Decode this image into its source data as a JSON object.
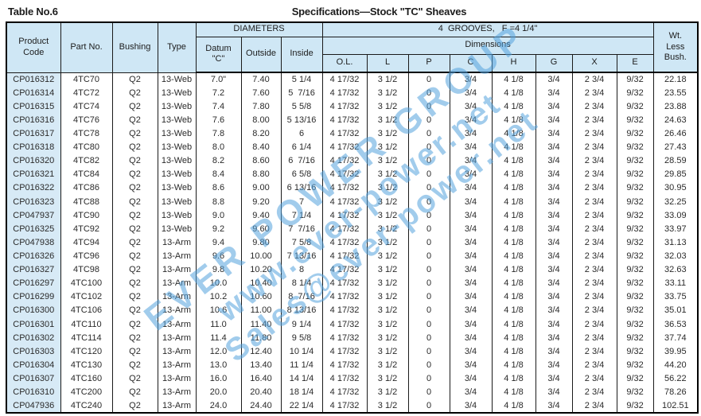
{
  "page": {
    "table_label": "Table No.6",
    "title": "Specifications—Stock \"TC\" Sheaves"
  },
  "header": {
    "product_code": "Product\nCode",
    "part_no": "Part No.",
    "bushing": "Bushing",
    "type": "Type",
    "diameters": "DIAMETERS",
    "grooves": "4  GROOVES,   F =4 1/4\"",
    "dimensions": "Dimensions",
    "datum": "Datum\n\"C\"",
    "outside": "Outside",
    "inside": "Inside",
    "dim_cols": [
      "O.L.",
      "L",
      "P",
      "C",
      "H",
      "G",
      "X",
      "E"
    ],
    "wt": "Wt.\nLess\nBush."
  },
  "column_keys": [
    "product-code",
    "part-no",
    "bushing",
    "type",
    "datum-c",
    "outside",
    "inside",
    "o-l",
    "l",
    "p",
    "c",
    "h",
    "g",
    "x",
    "e",
    "wt-less-bush"
  ],
  "rows": [
    [
      "CP016312",
      "4TC70",
      "Q2",
      "13-Web",
      "7.0\"",
      "7.40",
      "5 1/4",
      "4 17/32",
      "3 1/2",
      "0",
      "3/4",
      "4 1/8",
      "3/4",
      "2 3/4",
      "9/32",
      "22.18"
    ],
    [
      "CP016314",
      "4TC72",
      "Q2",
      "13-Web",
      "7.2",
      "7.60",
      "5  7/16",
      "4 17/32",
      "3 1/2",
      "0",
      "3/4",
      "4 1/8",
      "3/4",
      "2 3/4",
      "9/32",
      "23.55"
    ],
    [
      "CP016315",
      "4TC74",
      "Q2",
      "13-Web",
      "7.4",
      "7.80",
      "5 5/8",
      "4 17/32",
      "3 1/2",
      "0",
      "3/4",
      "4 1/8",
      "3/4",
      "2 3/4",
      "9/32",
      "23.88"
    ],
    [
      "CP016316",
      "4TC76",
      "Q2",
      "13-Web",
      "7.6",
      "8.00",
      "5 13/16",
      "4 17/32",
      "3 1/2",
      "0",
      "3/4",
      "4 1/8",
      "3/4",
      "2 3/4",
      "9/32",
      "24.63"
    ],
    [
      "CP016317",
      "4TC78",
      "Q2",
      "13-Web",
      "7.8",
      "8.20",
      "6",
      "4 17/32",
      "3 1/2",
      "0",
      "3/4",
      "4 1/8",
      "3/4",
      "2 3/4",
      "9/32",
      "26.46"
    ],
    [
      "CP016318",
      "4TC80",
      "Q2",
      "13-Web",
      "8.0",
      "8.40",
      "6 1/4",
      "4 17/32",
      "3 1/2",
      "0",
      "3/4",
      "4 1/8",
      "3/4",
      "2 3/4",
      "9/32",
      "27.43"
    ],
    [
      "CP016320",
      "4TC82",
      "Q2",
      "13-Web",
      "8.2",
      "8.60",
      "6  7/16",
      "4 17/32",
      "3 1/2",
      "0",
      "3/4",
      "4 1/8",
      "3/4",
      "2 3/4",
      "9/32",
      "28.59"
    ],
    [
      "CP016321",
      "4TC84",
      "Q2",
      "13-Web",
      "8.4",
      "8.80",
      "6 5/8",
      "4 17/32",
      "3 1/2",
      "0",
      "3/4",
      "4 1/8",
      "3/4",
      "2 3/4",
      "9/32",
      "29.85"
    ],
    [
      "CP016322",
      "4TC86",
      "Q2",
      "13-Web",
      "8.6",
      "9.00",
      "6 13/16",
      "4 17/32",
      "3 1/2",
      "0",
      "3/4",
      "4 1/8",
      "3/4",
      "2 3/4",
      "9/32",
      "30.95"
    ],
    [
      "CP016323",
      "4TC88",
      "Q2",
      "13-Web",
      "8.8",
      "9.20",
      "7",
      "4 17/32",
      "3 1/2",
      "0",
      "3/4",
      "4 1/8",
      "3/4",
      "2 3/4",
      "9/32",
      "32.25"
    ],
    [
      "CP047937",
      "4TC90",
      "Q2",
      "13-Web",
      "9.0",
      "9.40",
      "7 1/4",
      "4 17/32",
      "3 1/2",
      "0",
      "3/4",
      "4 1/8",
      "3/4",
      "2 3/4",
      "9/32",
      "33.09"
    ],
    [
      "CP016325",
      "4TC92",
      "Q2",
      "13-Web",
      "9.2",
      "9.60",
      "7  7/16",
      "4 17/32",
      "3 1/2",
      "0",
      "3/4",
      "4 1/8",
      "3/4",
      "2 3/4",
      "9/32",
      "33.97"
    ],
    [
      "CP047938",
      "4TC94",
      "Q2",
      "13-Arm",
      "9.4",
      "9.80",
      "7 5/8",
      "4 17/32",
      "3 1/2",
      "0",
      "3/4",
      "4 1/8",
      "3/4",
      "2 3/4",
      "9/32",
      "31.13"
    ],
    [
      "CP016326",
      "4TC96",
      "Q2",
      "13-Arm",
      "9.6",
      "10.00",
      "7 13/16",
      "4 17/32",
      "3 1/2",
      "0",
      "3/4",
      "4 1/8",
      "3/4",
      "2 3/4",
      "9/32",
      "32.03"
    ],
    [
      "CP016327",
      "4TC98",
      "Q2",
      "13-Arm",
      "9.8",
      "10.20",
      "8",
      "4 17/32",
      "3 1/2",
      "0",
      "3/4",
      "4 1/8",
      "3/4",
      "2 3/4",
      "9/32",
      "32.63"
    ],
    [
      "CP016297",
      "4TC100",
      "Q2",
      "13-Arm",
      "10.0",
      "10.40",
      "8 1/4",
      "4 17/32",
      "3 1/2",
      "0",
      "3/4",
      "4 1/8",
      "3/4",
      "2 3/4",
      "9/32",
      "33.11"
    ],
    [
      "CP016299",
      "4TC102",
      "Q2",
      "13-Arm",
      "10.2",
      "10.60",
      "8  7/16",
      "4 17/32",
      "3 1/2",
      "0",
      "3/4",
      "4 1/8",
      "3/4",
      "2 3/4",
      "9/32",
      "33.75"
    ],
    [
      "CP016300",
      "4TC106",
      "Q2",
      "13-Arm",
      "10.6",
      "11.00",
      "8 13/16",
      "4 17/32",
      "3 1/2",
      "0",
      "3/4",
      "4 1/8",
      "3/4",
      "2 3/4",
      "9/32",
      "35.01"
    ],
    [
      "CP016301",
      "4TC110",
      "Q2",
      "13-Arm",
      "11.0",
      "11.40",
      "9 1/4",
      "4 17/32",
      "3 1/2",
      "0",
      "3/4",
      "4 1/8",
      "3/4",
      "2 3/4",
      "9/32",
      "36.53"
    ],
    [
      "CP016302",
      "4TC114",
      "Q2",
      "13-Arm",
      "11.4",
      "11.80",
      "9 5/8",
      "4 17/32",
      "3 1/2",
      "0",
      "3/4",
      "4 1/8",
      "3/4",
      "2 3/4",
      "9/32",
      "37.74"
    ],
    [
      "CP016303",
      "4TC120",
      "Q2",
      "13-Arm",
      "12.0",
      "12.40",
      "10 1/4",
      "4 17/32",
      "3 1/2",
      "0",
      "3/4",
      "4 1/8",
      "3/4",
      "2 3/4",
      "9/32",
      "39.95"
    ],
    [
      "CP016304",
      "4TC130",
      "Q2",
      "13-Arm",
      "13.0",
      "13.40",
      "11 1/4",
      "4 17/32",
      "3 1/2",
      "0",
      "3/4",
      "4 1/8",
      "3/4",
      "2 3/4",
      "9/32",
      "44.20"
    ],
    [
      "CP016307",
      "4TC160",
      "Q2",
      "13-Arm",
      "16.0",
      "16.40",
      "14 1/4",
      "4 17/32",
      "3 1/2",
      "0",
      "3/4",
      "4 1/8",
      "3/4",
      "2 3/4",
      "9/32",
      "56.22"
    ],
    [
      "CP016310",
      "4TC200",
      "Q2",
      "13-Arm",
      "20.0",
      "20.40",
      "18 1/4",
      "4 17/32",
      "3 1/2",
      "0",
      "3/4",
      "4 1/8",
      "3/4",
      "2 3/4",
      "9/32",
      "78.26"
    ],
    [
      "CP047936",
      "4TC240",
      "Q2",
      "13-Arm",
      "24.0",
      "24.40",
      "22 1/4",
      "4 17/32",
      "3 1/2",
      "0",
      "3/4",
      "4 1/8",
      "3/4",
      "2 3/4",
      "9/32",
      "102.51"
    ]
  ],
  "watermark": {
    "lines": [
      "EVER POWER GROUP",
      "www.ever-power.net",
      "Sales@ever-power.net"
    ],
    "color": "#54a3dd"
  },
  "colors": {
    "header_bg": "#cfe7f5",
    "first_col_bg": "#d7eaf6",
    "border": "#000000"
  }
}
